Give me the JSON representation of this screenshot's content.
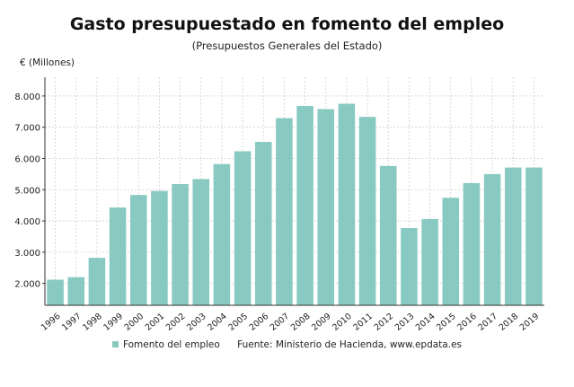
{
  "chart_data": {
    "type": "bar",
    "title": "Gasto presupuestado en fomento del empleo",
    "subtitle": "(Presupuestos Generales del Estado)",
    "ylabel": "€ (Millones)",
    "xlabel": "",
    "categories": [
      "1996",
      "1997",
      "1998",
      "1999",
      "2000",
      "2001",
      "2002",
      "2003",
      "2004",
      "2005",
      "2006",
      "2007",
      "2008",
      "2009",
      "2010",
      "2011",
      "2012",
      "2013",
      "2014",
      "2015",
      "2016",
      "2017",
      "2018",
      "2019"
    ],
    "series": [
      {
        "name": "Fomento del empleo",
        "color": "#88c9c1",
        "values": [
          2120,
          2200,
          2820,
          4430,
          4830,
          4960,
          5180,
          5340,
          5820,
          6230,
          6530,
          7290,
          7680,
          7580,
          7750,
          7330,
          5760,
          3770,
          4060,
          4740,
          5210,
          5500,
          5710,
          5710
        ]
      }
    ],
    "ylim": [
      1300,
      8600
    ],
    "yticks": [
      2000,
      3000,
      4000,
      5000,
      6000,
      7000,
      8000
    ],
    "ytick_labels": [
      "2.000",
      "3.000",
      "4.000",
      "5.000",
      "6.000",
      "7.000",
      "8.000"
    ],
    "grid": true,
    "legend_position": "bottom"
  },
  "source": "Fuente: Ministerio de Hacienda, www.epdata.es"
}
